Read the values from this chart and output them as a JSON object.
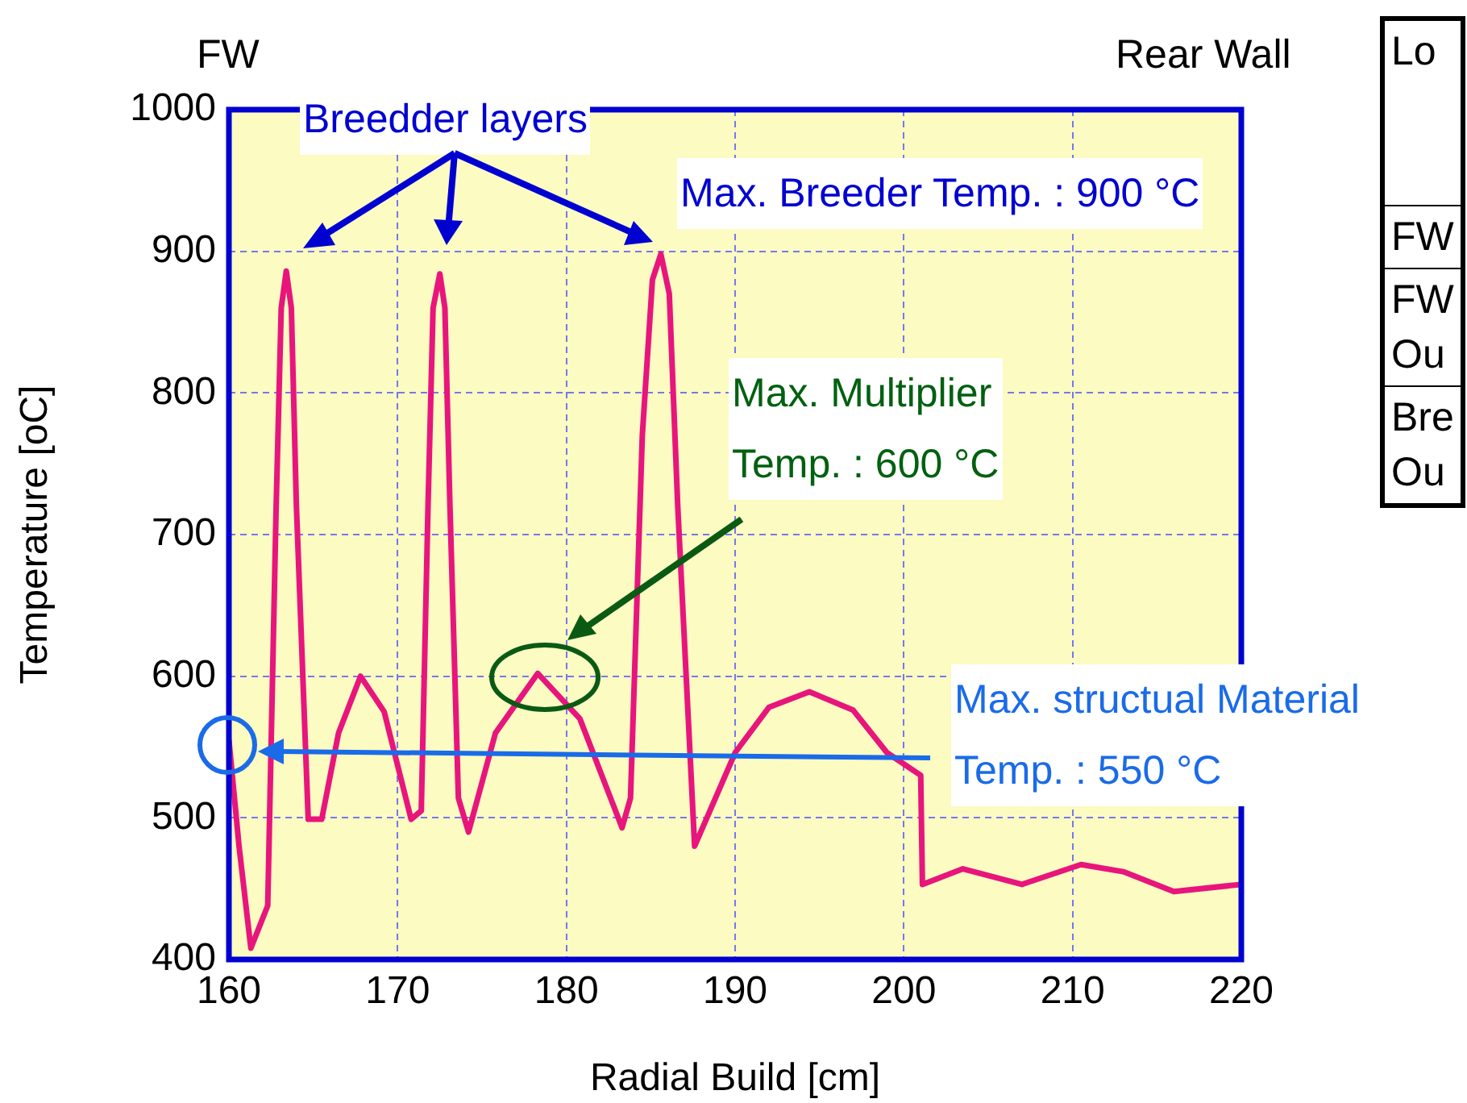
{
  "chart_data": {
    "type": "line",
    "xlabel": "Radial Build [cm]",
    "ylabel": "Temperature [oC]",
    "xlim": [
      160,
      220
    ],
    "xticks": [
      160,
      170,
      180,
      190,
      200,
      210,
      220
    ],
    "ylim": [
      400,
      1000
    ],
    "yticks": [
      400,
      500,
      600,
      700,
      800,
      900,
      1000
    ],
    "grid": true,
    "legend": false,
    "marker": "none",
    "line_style": "solid",
    "series": [
      {
        "color": "#e8157c",
        "x": [
          160,
          160.6,
          161.3,
          162.3,
          162.8,
          163.1,
          163.4,
          163.7,
          164.0,
          164.7,
          165.5,
          166.5,
          167.8,
          169.2,
          170.8,
          171.4,
          171.8,
          172.1,
          172.5,
          172.8,
          173.1,
          173.6,
          174.2,
          175.8,
          178.3,
          180.8,
          183.3,
          183.8,
          184.5,
          185.1,
          185.6,
          186.1,
          186.6,
          187.6,
          190,
          192,
          194.4,
          197,
          199,
          201,
          201.1,
          203.5,
          207,
          210.5,
          213,
          216,
          220
        ],
        "values": [
          555,
          480,
          408,
          438,
          720,
          860,
          886,
          860,
          720,
          499,
          499,
          560,
          600,
          575,
          499,
          505,
          720,
          860,
          884,
          860,
          720,
          514,
          490,
          560,
          602,
          570,
          493,
          514,
          770,
          880,
          898,
          870,
          720,
          480,
          546,
          578,
          589,
          576,
          546,
          530,
          453,
          464,
          453,
          467,
          462,
          448,
          453
        ]
      }
    ],
    "annotations": [
      "FW",
      "Rear Wall",
      "Breedder layers",
      "Max. Breeder Temp. : 900 °C",
      "Max. Multiplier\nTemp. : 600 °C",
      "Max. structual Material\nTemp. : 550 °C",
      "Lo",
      "FW",
      "FW\nOu",
      "Bre\nOu"
    ]
  }
}
